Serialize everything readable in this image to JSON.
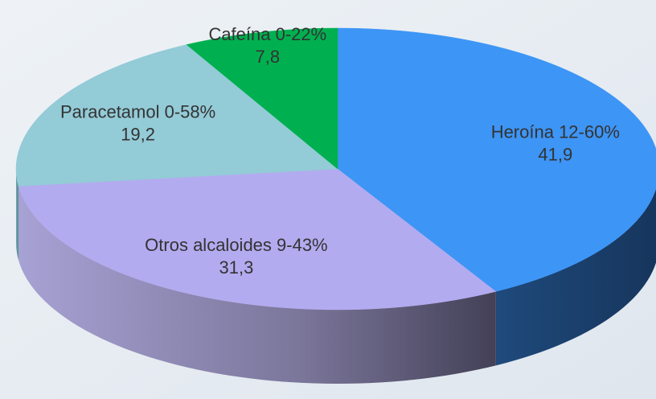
{
  "chart_data": {
    "type": "pie3d",
    "categories": [
      "Heroína 12-60%",
      "Otros alcaloides 9-43%",
      "Paracetamol 0-58%",
      "Cafeína 0-22%"
    ],
    "values": [
      41.9,
      31.3,
      19.2,
      7.8
    ],
    "value_labels": [
      "41,9",
      "31,3",
      "19,2",
      "7,8"
    ],
    "colors": [
      "#3d95f5",
      "#b3abef",
      "#93cbd7",
      "#00b050"
    ]
  }
}
